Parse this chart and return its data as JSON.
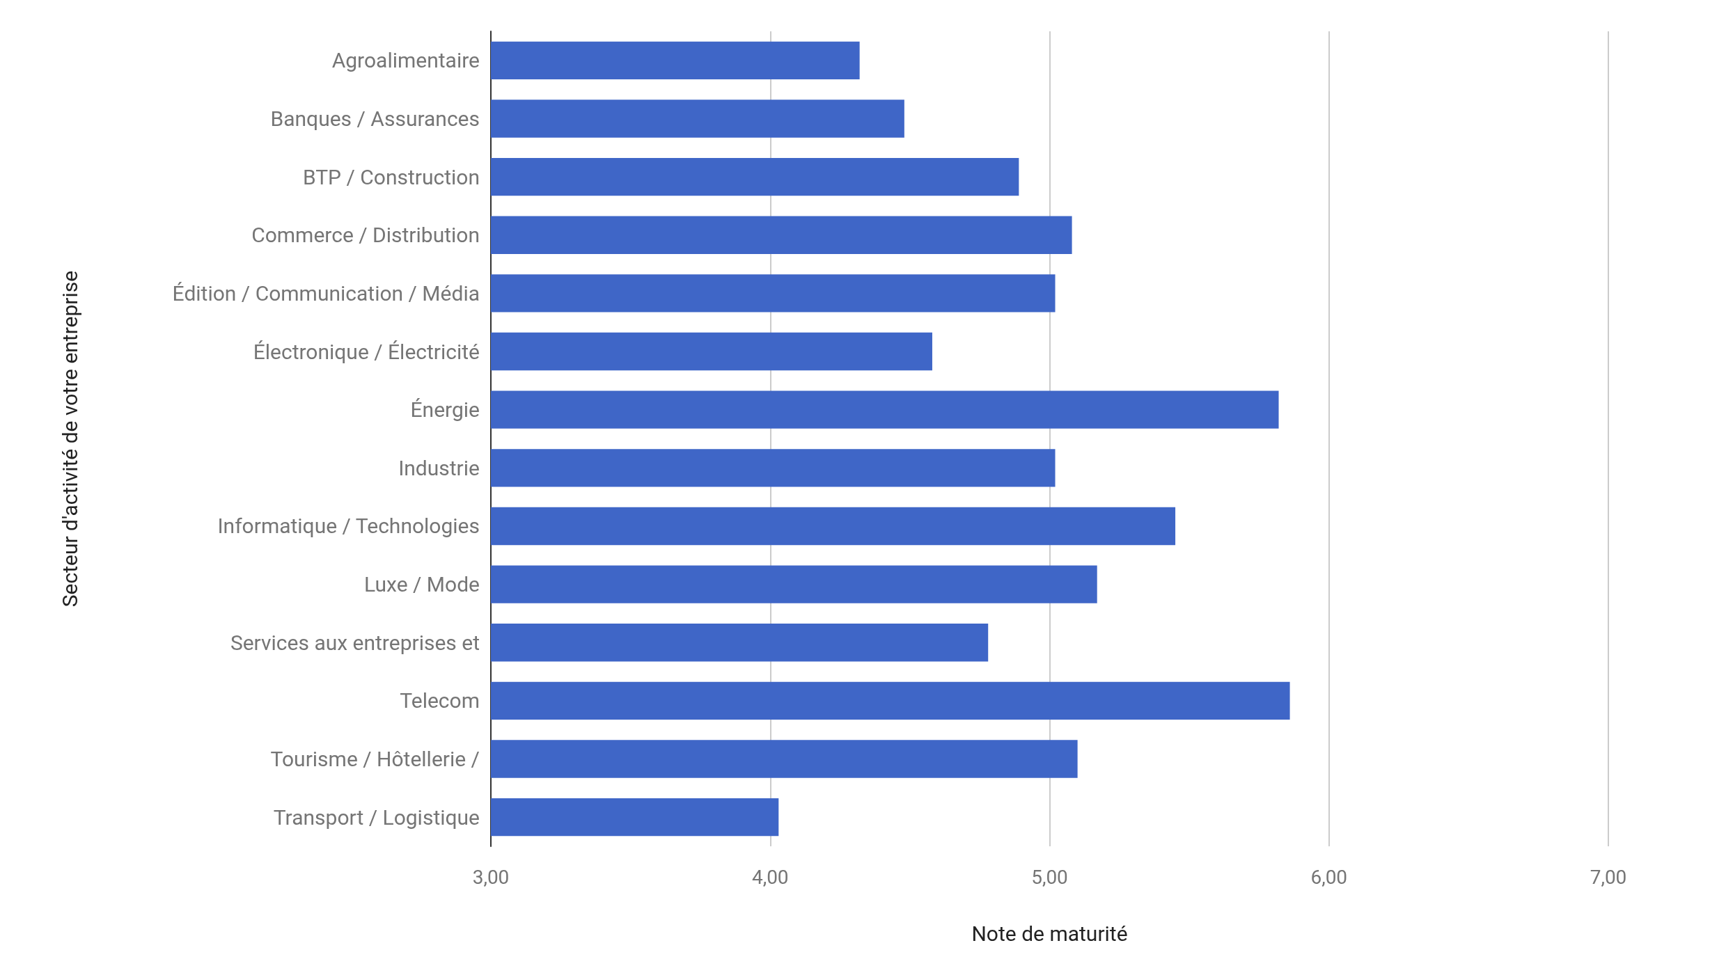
{
  "chart_data": {
    "type": "bar",
    "orientation": "horizontal",
    "xlabel": "Note de maturité",
    "ylabel": "Secteur d'activité de votre entreprise",
    "categories": [
      "Agroalimentaire",
      "Banques / Assurances",
      "BTP / Construction",
      "Commerce / Distribution",
      "Édition / Communication / Média",
      "Électronique / Électricité",
      "Énergie",
      "Industrie",
      "Informatique / Technologies",
      "Luxe / Mode",
      "Services aux entreprises et",
      "Telecom",
      "Tourisme / Hôtellerie /",
      "Transport / Logistique"
    ],
    "series": [
      {
        "color": "#3f66c7",
        "values": [
          4.32,
          4.48,
          4.89,
          5.08,
          5.02,
          4.58,
          5.82,
          5.02,
          5.45,
          5.17,
          4.78,
          5.86,
          5.1,
          4.03
        ]
      }
    ],
    "xlim": [
      3,
      7
    ],
    "xticks": [
      {
        "value": 3,
        "label": "3,00"
      },
      {
        "value": 4,
        "label": "4,00"
      },
      {
        "value": 5,
        "label": "5,00"
      },
      {
        "value": 6,
        "label": "6,00"
      },
      {
        "value": 7,
        "label": "7,00"
      }
    ],
    "grid": "x"
  }
}
